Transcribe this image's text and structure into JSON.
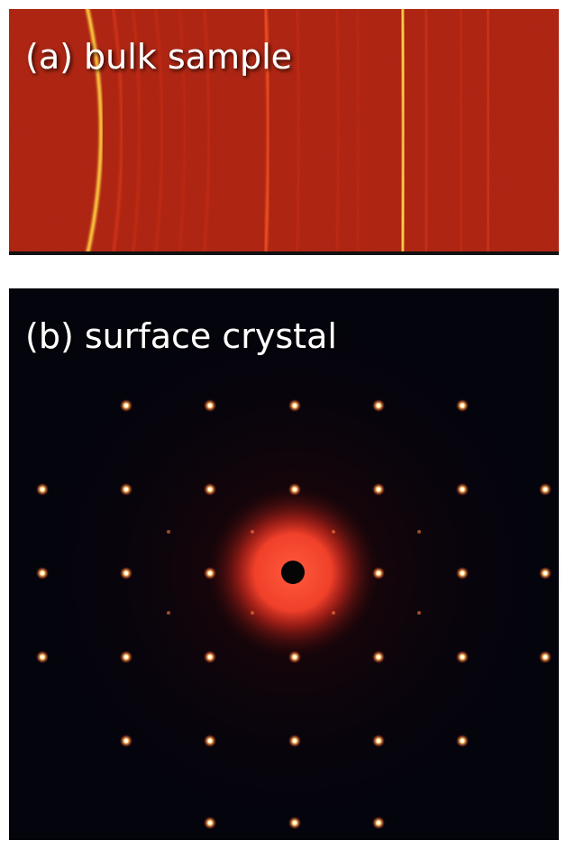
{
  "panels": [
    {
      "label": "(a) bulk sample"
    },
    {
      "label": "(b) surface crystal"
    }
  ]
}
